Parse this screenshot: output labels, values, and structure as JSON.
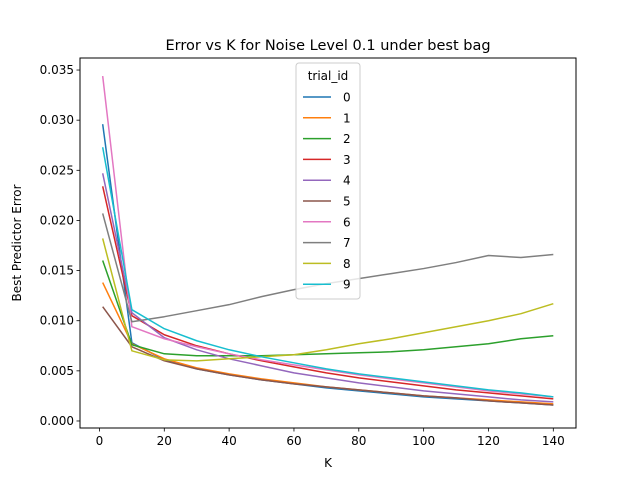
{
  "chart_data": {
    "type": "line",
    "title": "Error vs K for Noise Level 0.1 under best bag",
    "xlabel": "K",
    "ylabel": "Best Predictor Error",
    "xlim": [
      -6,
      147
    ],
    "ylim": [
      -0.0007,
      0.0362
    ],
    "xticks": [
      0,
      20,
      40,
      60,
      80,
      100,
      120,
      140
    ],
    "xtick_labels": [
      "0",
      "20",
      "40",
      "60",
      "80",
      "100",
      "120",
      "140"
    ],
    "yticks": [
      0.0,
      0.005,
      0.01,
      0.015,
      0.02,
      0.025,
      0.03,
      0.035
    ],
    "ytick_labels": [
      "0.000",
      "0.005",
      "0.010",
      "0.015",
      "0.020",
      "0.025",
      "0.030",
      "0.035"
    ],
    "grid": false,
    "legend": {
      "title": "trial_id",
      "placement": "upper-center"
    },
    "x": [
      1,
      10,
      20,
      30,
      40,
      50,
      60,
      70,
      80,
      90,
      100,
      110,
      120,
      130,
      140
    ],
    "series": [
      {
        "name": "0",
        "color": "#1f77b4",
        "values": [
          0.0296,
          0.0078,
          0.0061,
          0.0052,
          0.0046,
          0.0041,
          0.0037,
          0.0033,
          0.003,
          0.0027,
          0.0024,
          0.0022,
          0.002,
          0.0018,
          0.0016
        ]
      },
      {
        "name": "1",
        "color": "#ff7f0e",
        "values": [
          0.0138,
          0.0077,
          0.0062,
          0.0053,
          0.0047,
          0.0042,
          0.0038,
          0.0034,
          0.0031,
          0.0028,
          0.0025,
          0.0023,
          0.0021,
          0.0019,
          0.0017
        ]
      },
      {
        "name": "2",
        "color": "#2ca02c",
        "values": [
          0.016,
          0.0076,
          0.0067,
          0.0065,
          0.0065,
          0.0065,
          0.0066,
          0.0067,
          0.0068,
          0.0069,
          0.0071,
          0.0074,
          0.0077,
          0.0082,
          0.0085
        ]
      },
      {
        "name": "3",
        "color": "#d62728",
        "values": [
          0.0234,
          0.0105,
          0.0086,
          0.0075,
          0.0067,
          0.006,
          0.0054,
          0.0048,
          0.0043,
          0.0039,
          0.0035,
          0.0031,
          0.0028,
          0.0025,
          0.0022
        ]
      },
      {
        "name": "4",
        "color": "#9467bd",
        "values": [
          0.0247,
          0.0108,
          0.0083,
          0.0071,
          0.0062,
          0.0055,
          0.0048,
          0.0043,
          0.0038,
          0.0034,
          0.003,
          0.0027,
          0.0024,
          0.0021,
          0.0019
        ]
      },
      {
        "name": "5",
        "color": "#8c564b",
        "values": [
          0.0114,
          0.0074,
          0.006,
          0.0052,
          0.0046,
          0.0041,
          0.0037,
          0.0034,
          0.0031,
          0.0028,
          0.0025,
          0.0023,
          0.002,
          0.0018,
          0.0016
        ]
      },
      {
        "name": "6",
        "color": "#e377c2",
        "values": [
          0.0344,
          0.0094,
          0.0082,
          0.0074,
          0.0067,
          0.0061,
          0.0056,
          0.0051,
          0.0046,
          0.0042,
          0.0038,
          0.0034,
          0.003,
          0.0027,
          0.0024
        ]
      },
      {
        "name": "7",
        "color": "#7f7f7f",
        "values": [
          0.0207,
          0.0099,
          0.0104,
          0.011,
          0.0116,
          0.0124,
          0.0131,
          0.0137,
          0.0142,
          0.0147,
          0.0152,
          0.0158,
          0.0165,
          0.0163,
          0.0166
        ]
      },
      {
        "name": "8",
        "color": "#bcbd22",
        "values": [
          0.0182,
          0.007,
          0.0061,
          0.006,
          0.0062,
          0.0064,
          0.0066,
          0.0071,
          0.0077,
          0.0082,
          0.0088,
          0.0094,
          0.01,
          0.0107,
          0.0117
        ]
      },
      {
        "name": "9",
        "color": "#17becf",
        "values": [
          0.0273,
          0.0111,
          0.0092,
          0.008,
          0.0071,
          0.0064,
          0.0058,
          0.0052,
          0.0047,
          0.0043,
          0.0039,
          0.0035,
          0.0031,
          0.0028,
          0.0024
        ]
      }
    ]
  }
}
